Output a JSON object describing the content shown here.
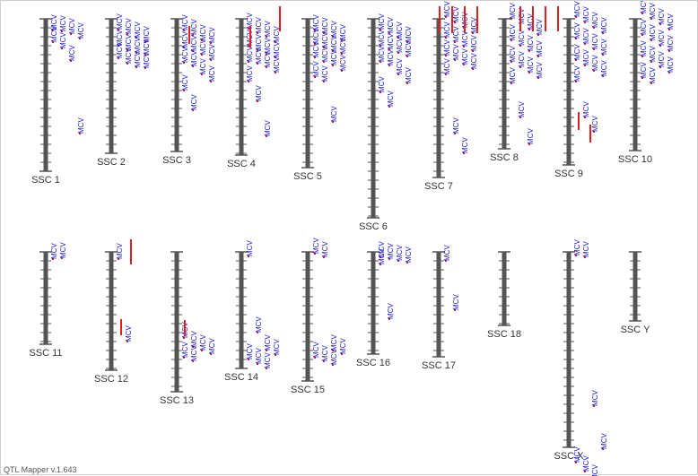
{
  "app": {
    "footer": "QTL Mapper v.1.643"
  },
  "chart_data": {
    "type": "chromosome-qtl-map",
    "trait": "MCV",
    "colors": {
      "chromosome": "#555555",
      "qtl_label": "#1a1adc",
      "qtl_marker": "#e02020",
      "chromosome_label": "#333333"
    },
    "chromosomes": [
      {
        "name": "SSC 1",
        "label": "SSC 1",
        "length": 170,
        "qtl_positions": [
          3,
          4,
          7,
          12,
          16,
          23,
          37,
          118
        ]
      },
      {
        "name": "SSC 2",
        "label": "SSC 2",
        "length": 150,
        "qtl_positions": [
          2,
          7,
          11,
          16,
          20,
          25,
          28,
          30,
          34,
          40,
          44,
          45
        ]
      },
      {
        "name": "SSC 3",
        "label": "SSC 3",
        "length": 145,
        "qtl_positions": [
          3,
          8,
          14,
          17,
          22,
          26,
          30,
          36,
          39,
          43,
          52,
          60,
          70,
          92
        ]
      },
      {
        "name": "SSC 4",
        "label": "SSC 4",
        "length": 150,
        "qtl_positions": [
          1,
          6,
          10,
          16,
          20,
          25,
          29,
          33,
          38,
          40,
          44,
          50,
          60,
          82,
          121
        ]
      },
      {
        "name": "SSC 5",
        "label": "SSC 5",
        "length": 165,
        "qtl_positions": [
          3,
          6,
          10,
          14,
          18,
          22,
          26,
          29,
          33,
          38,
          42,
          48,
          55,
          60,
          105
        ]
      },
      {
        "name": "SSC 6",
        "label": "SSC 6",
        "length": 220,
        "qtl_positions": [
          2,
          6,
          11,
          16,
          20,
          24,
          28,
          32,
          38,
          42,
          52,
          62,
          72,
          88
        ]
      },
      {
        "name": "SSC 7",
        "label": "SSC 7",
        "length": 175,
        "qtl_positions": [
          -12,
          -6,
          0,
          6,
          11,
          16,
          21,
          26,
          31,
          36,
          41,
          46,
          52,
          118,
          140
        ]
      },
      {
        "name": "SSC 8",
        "label": "SSC 8",
        "length": 140,
        "qtl_positions": [
          -10,
          -4,
          2,
          8,
          14,
          20,
          26,
          32,
          38,
          44,
          50,
          56,
          62,
          100,
          130
        ]
      },
      {
        "name": "SSC 9",
        "label": "SSC 9",
        "length": 160,
        "qtl_positions": [
          -12,
          -6,
          0,
          6,
          12,
          18,
          24,
          30,
          36,
          42,
          48,
          54,
          60,
          100,
          116
        ]
      },
      {
        "name": "SSC 10",
        "label": "SSC 10",
        "length": 145,
        "qtl_positions": [
          -16,
          -10,
          -4,
          2,
          8,
          14,
          20,
          26,
          32,
          38,
          44,
          50,
          56,
          62
        ]
      },
      {
        "name": "SSC 11",
        "label": "SSC 11",
        "length": 100,
        "qtl_positions": [
          -2,
          -3
        ]
      },
      {
        "name": "SSC 12",
        "label": "SSC 12",
        "length": 130,
        "qtl_positions": [
          -2,
          90
        ]
      },
      {
        "name": "SSC 13",
        "label": "SSC 13",
        "length": 150,
        "qtl_positions": [
          86,
          96,
          100,
          104,
          108,
          112
        ]
      },
      {
        "name": "SSC 14",
        "label": "SSC 14",
        "length": 135,
        "qtl_positions": [
          -5,
          80,
          100,
          105,
          110,
          115,
          120
        ]
      },
      {
        "name": "SSC 15",
        "label": "SSC 15",
        "length": 140,
        "qtl_positions": [
          -8,
          -4,
          100,
          104,
          108,
          112,
          116
        ]
      },
      {
        "name": "SSC 16",
        "label": "SSC 16",
        "length": 110,
        "qtl_positions": [
          -4,
          -2,
          0,
          2,
          4,
          65
        ]
      },
      {
        "name": "SSC 17",
        "label": "SSC 17",
        "length": 115,
        "qtl_positions": [
          0,
          55
        ]
      },
      {
        "name": "SSC 18",
        "label": "SSC 18",
        "length": 80,
        "qtl_positions": []
      },
      {
        "name": "SSC X",
        "label": "SSC X",
        "length": 215,
        "qtl_positions": [
          -6,
          -4,
          162,
          210,
          225,
          235,
          245
        ]
      },
      {
        "name": "SSC Y",
        "label": "SSC Y",
        "length": 75,
        "qtl_positions": []
      }
    ]
  }
}
